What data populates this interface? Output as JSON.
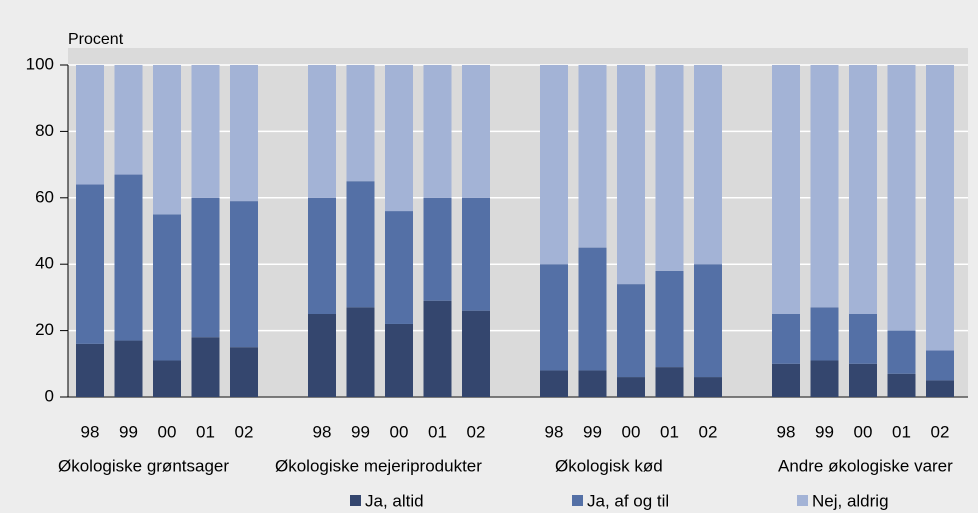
{
  "chart_data": {
    "type": "stacked-bar",
    "y_axis_label": "Procent",
    "ylim": [
      0,
      100
    ],
    "yticks": [
      0,
      20,
      40,
      60,
      80,
      100
    ],
    "grid": true,
    "groups": [
      {
        "label": "Økologiske grøntsager",
        "categories": [
          "98",
          "99",
          "00",
          "01",
          "02"
        ]
      },
      {
        "label": "Økologiske mejeriprodukter",
        "categories": [
          "98",
          "99",
          "00",
          "01",
          "02"
        ]
      },
      {
        "label": "Økologisk kød",
        "categories": [
          "98",
          "99",
          "00",
          "01",
          "02"
        ]
      },
      {
        "label": "Andre økologiske varer",
        "categories": [
          "98",
          "99",
          "00",
          "01",
          "02"
        ]
      }
    ],
    "series": [
      {
        "name": "Ja, altid",
        "color": "#34466e",
        "values": [
          [
            16,
            17,
            11,
            18,
            15
          ],
          [
            25,
            27,
            22,
            29,
            26
          ],
          [
            8,
            8,
            6,
            9,
            6
          ],
          [
            10,
            11,
            10,
            7,
            5
          ]
        ]
      },
      {
        "name": "Ja, af og til",
        "color": "#5470a6",
        "values": [
          [
            48,
            50,
            44,
            42,
            44
          ],
          [
            35,
            38,
            34,
            31,
            34
          ],
          [
            32,
            37,
            28,
            29,
            34
          ],
          [
            15,
            16,
            15,
            13,
            9
          ]
        ]
      },
      {
        "name": "Nej, aldrig",
        "color": "#a3b3d6",
        "values": [
          [
            36,
            33,
            45,
            40,
            41
          ],
          [
            40,
            35,
            44,
            40,
            40
          ],
          [
            60,
            55,
            66,
            62,
            60
          ],
          [
            75,
            73,
            75,
            80,
            86
          ]
        ]
      }
    ]
  }
}
